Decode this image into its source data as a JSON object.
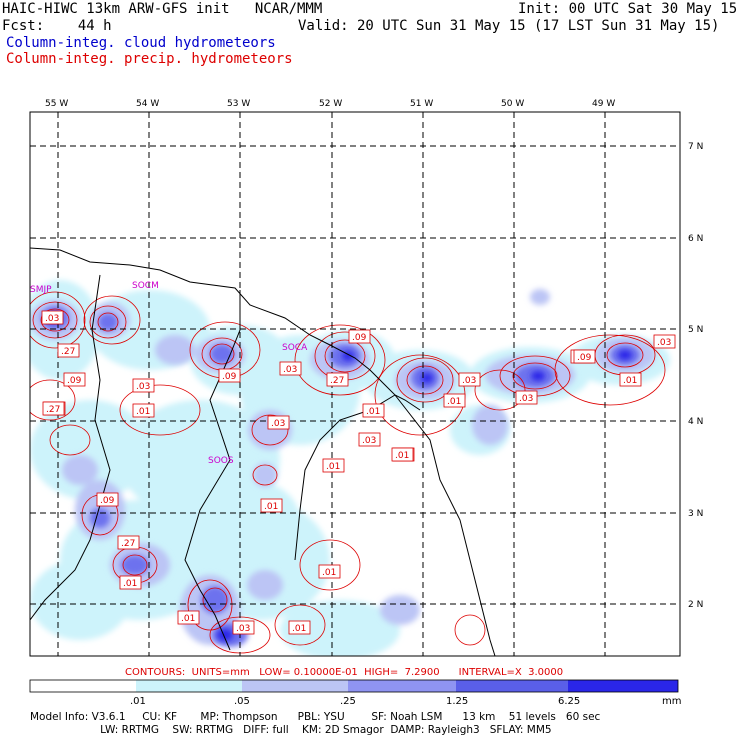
{
  "header": {
    "model_line": "HAIC-HIWC 13km ARW-GFS init   NCAR/MMM",
    "fcst_label": "Fcst:",
    "fcst_value": "44 h",
    "init": "Init: 00 UTC Sat 30 May 15",
    "valid": "Valid: 20 UTC Sun 31 May 15 (17 LST Sun 31 May 15)",
    "field_cloud": "Column-integ. cloud hydrometeors",
    "field_precip": "Column-integ. precip. hydrometeors"
  },
  "colors": {
    "cloud_field": "#0000cc",
    "precip_contours": "#dd0000",
    "fill_levels": [
      "#ffffff",
      "#cdf3fb",
      "#bcc5f5",
      "#8f94f2",
      "#5a5fe8",
      "#2a26e8"
    ]
  },
  "map": {
    "lon_labels": [
      "55 W",
      "54 W",
      "53 W",
      "52 W",
      "51 W",
      "50 W",
      "49 W"
    ],
    "lat_labels": [
      "7 N",
      "6 N",
      "5 N",
      "4 N",
      "3 N",
      "2 N"
    ],
    "site_labels": [
      "SMJP",
      "SOCA",
      "SOOS",
      "SOCM"
    ],
    "contour_labels": [
      ".03",
      ".27",
      ".09",
      ".01",
      ".03",
      ".01",
      ".09",
      ".09",
      ".03",
      ".27",
      ".03",
      ".01",
      ".03",
      ".01",
      ".27",
      ".03",
      ".01",
      ".03",
      ".01",
      ".03",
      ".09",
      ".27",
      ".01",
      ".01",
      ".01",
      ".01",
      ".03",
      ".01",
      ".01",
      ".09",
      ".27",
      ".01"
    ]
  },
  "contours_line": "CONTOURS:  UNITS=mm   LOW= 0.10000E-01  HIGH=  7.2900      INTERVAL=X  3.0000",
  "colorbar": {
    "labels": [
      ".01",
      ".05",
      ".25",
      "1.25",
      "6.25"
    ],
    "units": "mm"
  },
  "model_info": {
    "line1": "Model Info: V3.6.1     CU: KF       MP: Thompson      PBL: YSU        SF: Noah LSM      13 km    51 levels   60 sec",
    "line2": "                     LW: RRTMG    SW: RRTMG   DIFF: full    KM: 2D Smagor  DAMP: Rayleigh3   SFLAY: MM5"
  }
}
